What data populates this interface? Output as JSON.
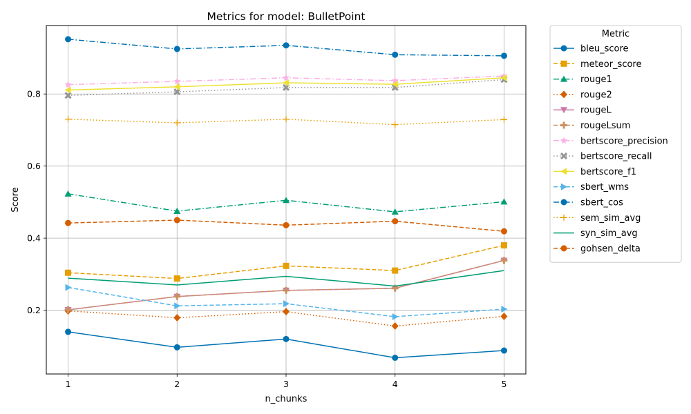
{
  "chart_data": {
    "type": "line",
    "title": "Metrics for model: BulletPoint",
    "xlabel": "n_chunks",
    "ylabel": "Score",
    "x": [
      1,
      2,
      3,
      4,
      5
    ],
    "xticks": [
      "1",
      "2",
      "3",
      "4",
      "5"
    ],
    "yticks": [
      "0.2",
      "0.4",
      "0.6",
      "0.8"
    ],
    "xlim": [
      0.8,
      5.2
    ],
    "ylim": [
      0.023,
      0.99
    ],
    "grid": true,
    "legend": {
      "title": "Metric",
      "placement": "outside-right"
    },
    "series": [
      {
        "name": "bleu_score",
        "values": [
          0.14,
          0.097,
          0.12,
          0.068,
          0.088
        ],
        "color": "#0072b2",
        "dash": "solid",
        "marker": "circle"
      },
      {
        "name": "meteor_score",
        "values": [
          0.304,
          0.288,
          0.323,
          0.31,
          0.38
        ],
        "color": "#e69f00",
        "dash": "dashed",
        "marker": "square"
      },
      {
        "name": "rouge1",
        "values": [
          0.523,
          0.475,
          0.505,
          0.473,
          0.501
        ],
        "color": "#009e73",
        "dash": "dashdot",
        "marker": "triangle-up"
      },
      {
        "name": "rouge2",
        "values": [
          0.198,
          0.179,
          0.196,
          0.156,
          0.183
        ],
        "color": "#d55e00",
        "dash": "dotted",
        "marker": "diamond"
      },
      {
        "name": "rougeL",
        "values": [
          0.201,
          0.238,
          0.255,
          0.261,
          0.338
        ],
        "color": "#cc79a7",
        "dash": "solid",
        "marker": "triangle-down"
      },
      {
        "name": "rougeLsum",
        "values": [
          0.201,
          0.238,
          0.255,
          0.261,
          0.338
        ],
        "color": "#ca9161",
        "dash": "dashed",
        "marker": "plus"
      },
      {
        "name": "bertscore_precision",
        "values": [
          0.826,
          0.835,
          0.845,
          0.837,
          0.85
        ],
        "color": "#fbafe4",
        "dash": "dashdot",
        "marker": "star"
      },
      {
        "name": "bertscore_recall",
        "values": [
          0.796,
          0.806,
          0.818,
          0.818,
          0.84
        ],
        "color": "#949494",
        "dash": "dotted",
        "marker": "x"
      },
      {
        "name": "bertscore_f1",
        "values": [
          0.811,
          0.82,
          0.831,
          0.827,
          0.845
        ],
        "color": "#ece133",
        "dash": "solid",
        "marker": "triangle-left"
      },
      {
        "name": "sbert_wms",
        "values": [
          0.263,
          0.212,
          0.218,
          0.182,
          0.203
        ],
        "color": "#56b4e9",
        "dash": "dashed",
        "marker": "triangle-right"
      },
      {
        "name": "sbert_cos",
        "values": [
          0.952,
          0.925,
          0.935,
          0.909,
          0.906
        ],
        "color": "#0072b2",
        "dash": "dashdot",
        "marker": "circle"
      },
      {
        "name": "sem_sim_avg",
        "values": [
          0.73,
          0.72,
          0.73,
          0.715,
          0.729
        ],
        "color": "#e69f00",
        "dash": "dotted",
        "marker": "thin-plus"
      },
      {
        "name": "syn_sim_avg",
        "values": [
          0.289,
          0.27,
          0.294,
          0.267,
          0.31
        ],
        "color": "#009e73",
        "dash": "solid",
        "marker": "none"
      },
      {
        "name": "gohsen_delta",
        "values": [
          0.442,
          0.45,
          0.436,
          0.447,
          0.419
        ],
        "color": "#d55e00",
        "dash": "dashed",
        "marker": "circle"
      }
    ]
  }
}
